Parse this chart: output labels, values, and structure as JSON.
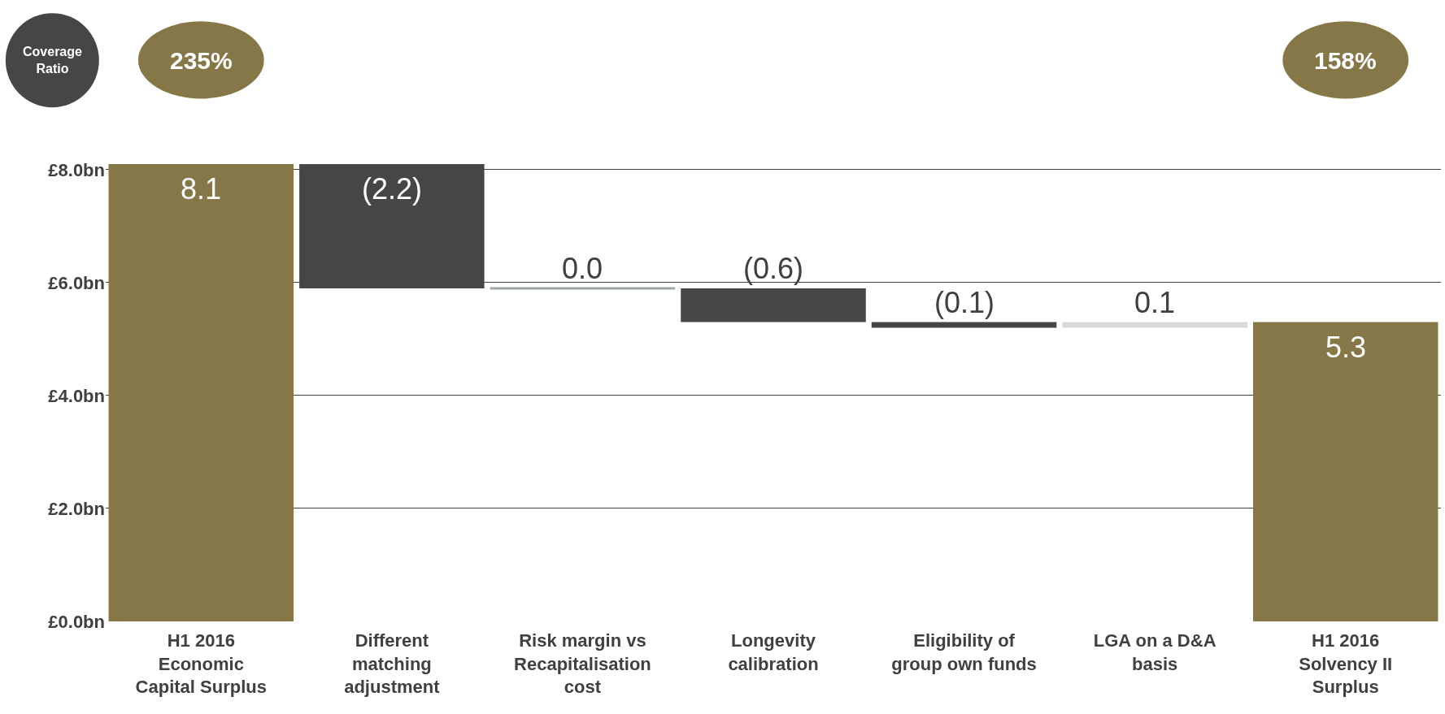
{
  "chart_data": {
    "type": "bar",
    "categories": [
      "H1 2016 Economic Capital Surplus",
      "Different matching adjustment",
      "Risk margin vs Recapitalisation cost",
      "Longevity calibration",
      "Eligibility of group own funds",
      "LGA on a D&A basis",
      "H1 2016 Solvency II Surplus"
    ],
    "values": [
      8.1,
      -2.2,
      0.0,
      -0.6,
      -0.1,
      0.1,
      5.3
    ],
    "base": [
      0,
      8.1,
      5.9,
      5.9,
      5.3,
      5.2,
      0
    ],
    "colors": [
      "#867748",
      "#464646",
      "#a0a7a8",
      "#464646",
      "#464646",
      "#d9d9d9",
      "#867748"
    ],
    "value_labels": [
      "8.1",
      "(2.2)",
      "0.0",
      "(0.6)",
      "(0.1)",
      "0.1",
      "5.3"
    ],
    "ylim": [
      0,
      8.1
    ],
    "yticks": [
      {
        "value": 0,
        "label": "£0.0bn"
      },
      {
        "value": 2,
        "label": "£2.0bn"
      },
      {
        "value": 4,
        "label": "£4.0bn"
      },
      {
        "value": 6,
        "label": "£6.0bn"
      },
      {
        "value": 8,
        "label": "£8.0bn"
      }
    ],
    "grid": "y",
    "annotations": [
      "Coverage Ratio",
      "235%",
      "158%"
    ]
  }
}
